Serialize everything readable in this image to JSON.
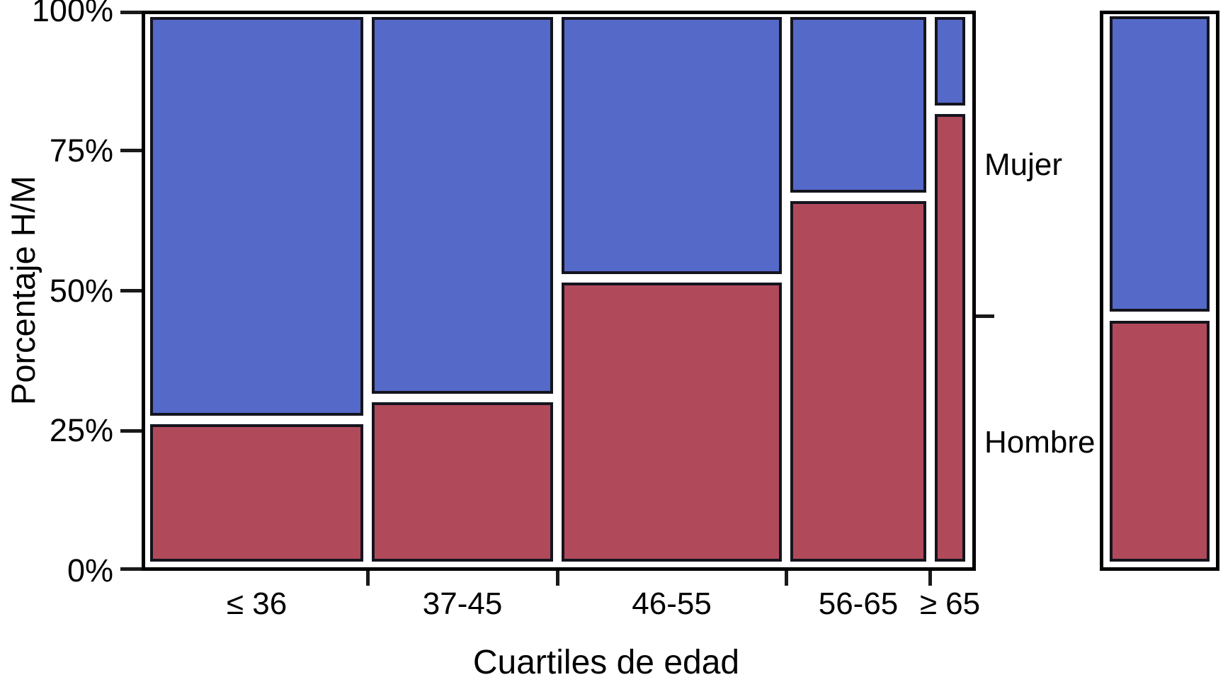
{
  "chart_data": {
    "type": "mosaic",
    "title": "",
    "xlabel": "Cuartiles de edad",
    "ylabel": "Porcentaje H/M",
    "categories": [
      "≤ 36",
      "37-45",
      "46-55",
      "56-65",
      "≥ 65"
    ],
    "category_width_percents": [
      27.3,
      23.2,
      28.2,
      17.4,
      3.9
    ],
    "series": [
      {
        "name": "Mujer",
        "color": "#5569C8",
        "values": [
          74,
          70,
          48,
          33,
          17
        ],
        "overall": 55
      },
      {
        "name": "Hombre",
        "color": "#B04A5B",
        "values": [
          26,
          30,
          52,
          67,
          83
        ],
        "overall": 45
      }
    ],
    "overall_bar": {
      "mujer_percent": 55,
      "hombre_percent": 45
    },
    "ylim": [
      0,
      100
    ],
    "yticks": [
      {
        "label": "0%",
        "percent": 0
      },
      {
        "label": "25%",
        "percent": 25
      },
      {
        "label": "50%",
        "percent": 50
      },
      {
        "label": "75%",
        "percent": 75
      },
      {
        "label": "100%",
        "percent": 100
      }
    ],
    "grid": "off",
    "legend_position": "right-of-plot"
  },
  "labels": {
    "y_axis_title": "Porcentaje H/M",
    "x_axis_title": "Cuartiles de edad",
    "right_top": "Mujer",
    "right_bottom": "Hombre"
  },
  "colors": {
    "mujer_blue": "#5569C8",
    "hombre_red": "#B04A5B",
    "segment_border": "#14141E",
    "frame_border": "#000000",
    "background": "#FFFFFF",
    "text": "#000000"
  }
}
